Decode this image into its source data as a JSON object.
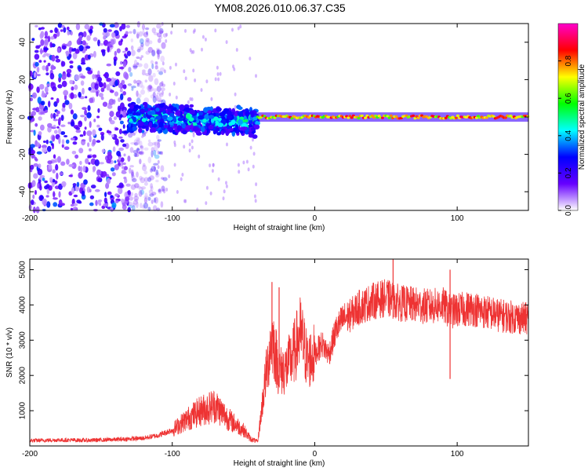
{
  "title": "YM08.2026.010.06.37.C35",
  "chart_data": [
    {
      "type": "heatmap",
      "name": "spectrogram",
      "xlabel": "Height of straight line (km)",
      "ylabel": "Frequency (Hz)",
      "xlim": [
        -200,
        150
      ],
      "ylim": [
        -50,
        50
      ],
      "xticks": [
        -200,
        -100,
        0,
        100
      ],
      "xtick_labels": [
        "-200",
        "-100",
        "0",
        "100"
      ],
      "yticks": [
        -40,
        -20,
        0,
        20,
        40
      ],
      "ytick_labels": [
        "-40",
        "-20",
        "0",
        "20",
        "40"
      ],
      "colorbar": {
        "label": "Normalized spectral amplitude",
        "range": [
          0,
          1
        ],
        "ticks": [
          0,
          0.2,
          0.4,
          0.6,
          0.8
        ],
        "tick_labels": [
          "0.0",
          "0.2",
          "0.4",
          "0.6",
          "0.8"
        ],
        "colors": [
          "#ffffff",
          "#6600ff",
          "#0000ff",
          "#00ffff",
          "#00ff00",
          "#ffff00",
          "#ff0000",
          "#ff00cc"
        ]
      },
      "regions": [
        {
          "x_range": [
            -200,
            -130
          ],
          "freq_range": [
            -50,
            50
          ],
          "amplitude": 0.12,
          "pattern": "noise"
        },
        {
          "x_range": [
            -130,
            -40
          ],
          "freq_range": [
            -8,
            8
          ],
          "amplitude": 0.3,
          "pattern": "broad band"
        },
        {
          "x_range": [
            -40,
            150
          ],
          "freq_range": [
            -2,
            2
          ],
          "amplitude": 0.85,
          "pattern": "narrow tone"
        }
      ]
    },
    {
      "type": "line",
      "name": "snr",
      "xlabel": "Height of straight line (km)",
      "ylabel": "SNR (10 * v/v)",
      "xlim": [
        -200,
        150
      ],
      "ylim": [
        0,
        5300
      ],
      "xticks": [
        -200,
        -100,
        0,
        100
      ],
      "xtick_labels": [
        "-200",
        "-100",
        "0",
        "100"
      ],
      "yticks": [
        1000,
        2000,
        3000,
        4000,
        5000
      ],
      "ytick_labels": [
        "1000",
        "2000",
        "3000",
        "4000",
        "5000"
      ],
      "color": "#ee3333",
      "x": [
        -200,
        -180,
        -160,
        -140,
        -120,
        -110,
        -100,
        -90,
        -80,
        -70,
        -65,
        -60,
        -55,
        -50,
        -45,
        -40,
        -35,
        -30,
        -25,
        -20,
        -15,
        -10,
        -5,
        0,
        5,
        10,
        15,
        20,
        25,
        30,
        40,
        50,
        60,
        70,
        80,
        90,
        95,
        100,
        110,
        120,
        130,
        140,
        150
      ],
      "values": [
        150,
        170,
        160,
        180,
        220,
        300,
        450,
        750,
        1000,
        1150,
        950,
        750,
        600,
        450,
        200,
        120,
        1800,
        3100,
        2100,
        2200,
        2600,
        3200,
        2400,
        2600,
        2900,
        2600,
        3300,
        3600,
        3700,
        3900,
        4100,
        4200,
        4050,
        4000,
        3950,
        4000,
        3800,
        3850,
        3900,
        3800,
        3700,
        3650,
        3600
      ],
      "spikes": [
        [
          -30,
          4650
        ],
        [
          -25,
          4500
        ],
        [
          55,
          5300
        ],
        [
          95,
          1900
        ],
        [
          95,
          5000
        ]
      ]
    }
  ]
}
